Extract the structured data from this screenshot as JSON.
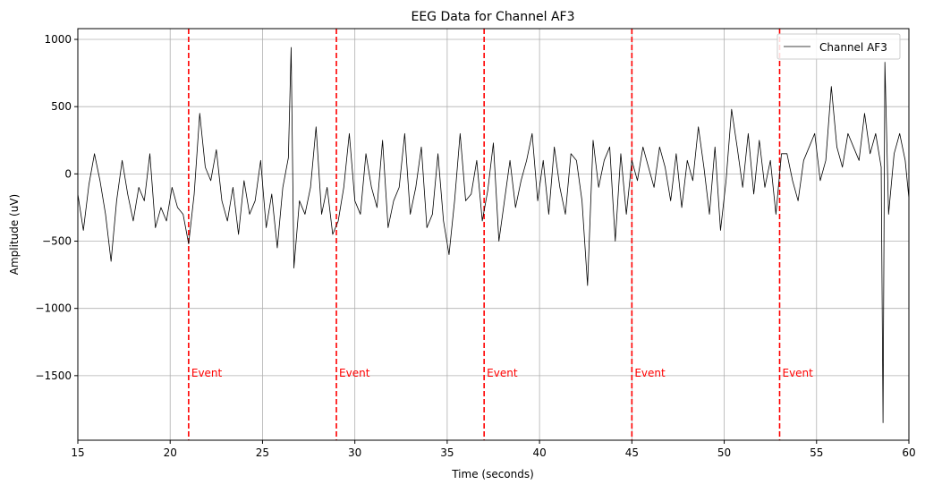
{
  "chart_data": {
    "type": "line",
    "title": "EEG Data for Channel AF3",
    "xlabel": "Time (seconds)",
    "ylabel": "Amplitude (uV)",
    "xlim": [
      15,
      60
    ],
    "ylim": [
      -1980,
      1080
    ],
    "x_ticks": [
      15,
      20,
      25,
      30,
      35,
      40,
      45,
      50,
      55,
      60
    ],
    "y_ticks": [
      -1500,
      -1000,
      -500,
      0,
      500,
      1000
    ],
    "x_tick_labels": [
      "15",
      "20",
      "25",
      "30",
      "35",
      "40",
      "45",
      "50",
      "55",
      "60"
    ],
    "y_tick_labels": [
      "−1500",
      "−1000",
      "−500",
      "0",
      "500",
      "1000"
    ],
    "grid": true,
    "legend_position": "top-right",
    "series": [
      {
        "name": "Channel AF3",
        "color": "#000000",
        "x": [
          15.0,
          15.3,
          15.6,
          15.9,
          16.2,
          16.5,
          16.8,
          17.1,
          17.4,
          17.7,
          18.0,
          18.3,
          18.6,
          18.9,
          19.2,
          19.5,
          19.8,
          20.1,
          20.4,
          20.7,
          21.0,
          21.3,
          21.6,
          21.9,
          22.2,
          22.5,
          22.8,
          23.1,
          23.4,
          23.7,
          24.0,
          24.3,
          24.6,
          24.9,
          25.2,
          25.5,
          25.8,
          26.1,
          26.4,
          26.55,
          26.7,
          27.0,
          27.3,
          27.6,
          27.9,
          28.2,
          28.5,
          28.8,
          29.1,
          29.4,
          29.7,
          30.0,
          30.3,
          30.6,
          30.9,
          31.2,
          31.5,
          31.8,
          32.1,
          32.4,
          32.7,
          33.0,
          33.3,
          33.6,
          33.9,
          34.2,
          34.5,
          34.8,
          35.1,
          35.4,
          35.7,
          36.0,
          36.3,
          36.6,
          36.9,
          37.2,
          37.5,
          37.8,
          38.1,
          38.4,
          38.7,
          39.0,
          39.3,
          39.6,
          39.9,
          40.2,
          40.5,
          40.8,
          41.1,
          41.4,
          41.7,
          42.0,
          42.3,
          42.6,
          42.9,
          43.2,
          43.5,
          43.8,
          44.1,
          44.4,
          44.7,
          45.0,
          45.3,
          45.6,
          45.9,
          46.2,
          46.5,
          46.8,
          47.1,
          47.4,
          47.7,
          48.0,
          48.3,
          48.6,
          48.9,
          49.2,
          49.5,
          49.8,
          50.1,
          50.4,
          50.7,
          51.0,
          51.3,
          51.6,
          51.9,
          52.2,
          52.5,
          52.8,
          53.1,
          53.4,
          53.7,
          54.0,
          54.3,
          54.6,
          54.9,
          55.2,
          55.5,
          55.8,
          56.1,
          56.4,
          56.7,
          57.0,
          57.3,
          57.6,
          57.9,
          58.2,
          58.5,
          58.6,
          58.7,
          58.9,
          59.2,
          59.5,
          59.8,
          60.0
        ],
        "y": [
          -150,
          -420,
          -80,
          150,
          -50,
          -300,
          -650,
          -200,
          100,
          -150,
          -350,
          -100,
          -200,
          150,
          -400,
          -250,
          -350,
          -100,
          -250,
          -300,
          -520,
          -150,
          450,
          50,
          -50,
          180,
          -200,
          -350,
          -100,
          -450,
          -50,
          -300,
          -200,
          100,
          -400,
          -150,
          -550,
          -100,
          120,
          940,
          -700,
          -200,
          -300,
          -100,
          350,
          -300,
          -100,
          -450,
          -350,
          -100,
          300,
          -200,
          -300,
          150,
          -100,
          -250,
          250,
          -400,
          -200,
          -100,
          300,
          -300,
          -100,
          200,
          -400,
          -300,
          150,
          -350,
          -600,
          -200,
          300,
          -200,
          -150,
          100,
          -350,
          -120,
          230,
          -500,
          -200,
          100,
          -250,
          -50,
          100,
          300,
          -200,
          100,
          -300,
          200,
          -100,
          -300,
          150,
          100,
          -200,
          -830,
          250,
          -100,
          100,
          200,
          -500,
          150,
          -300,
          100,
          -50,
          200,
          50,
          -100,
          200,
          50,
          -200,
          150,
          -250,
          100,
          -50,
          350,
          50,
          -300,
          200,
          -420,
          -50,
          480,
          200,
          -100,
          300,
          -150,
          250,
          -100,
          100,
          -300,
          150,
          150,
          -50,
          -200,
          100,
          200,
          300,
          -50,
          100,
          650,
          200,
          50,
          300,
          200,
          100,
          450,
          150,
          300,
          50,
          -1850,
          830,
          -300,
          150,
          300,
          100,
          -180
        ]
      }
    ],
    "events": {
      "label": "Event",
      "color": "#ff0000",
      "times": [
        21,
        29,
        37,
        45,
        53
      ],
      "label_y": -1480
    }
  }
}
